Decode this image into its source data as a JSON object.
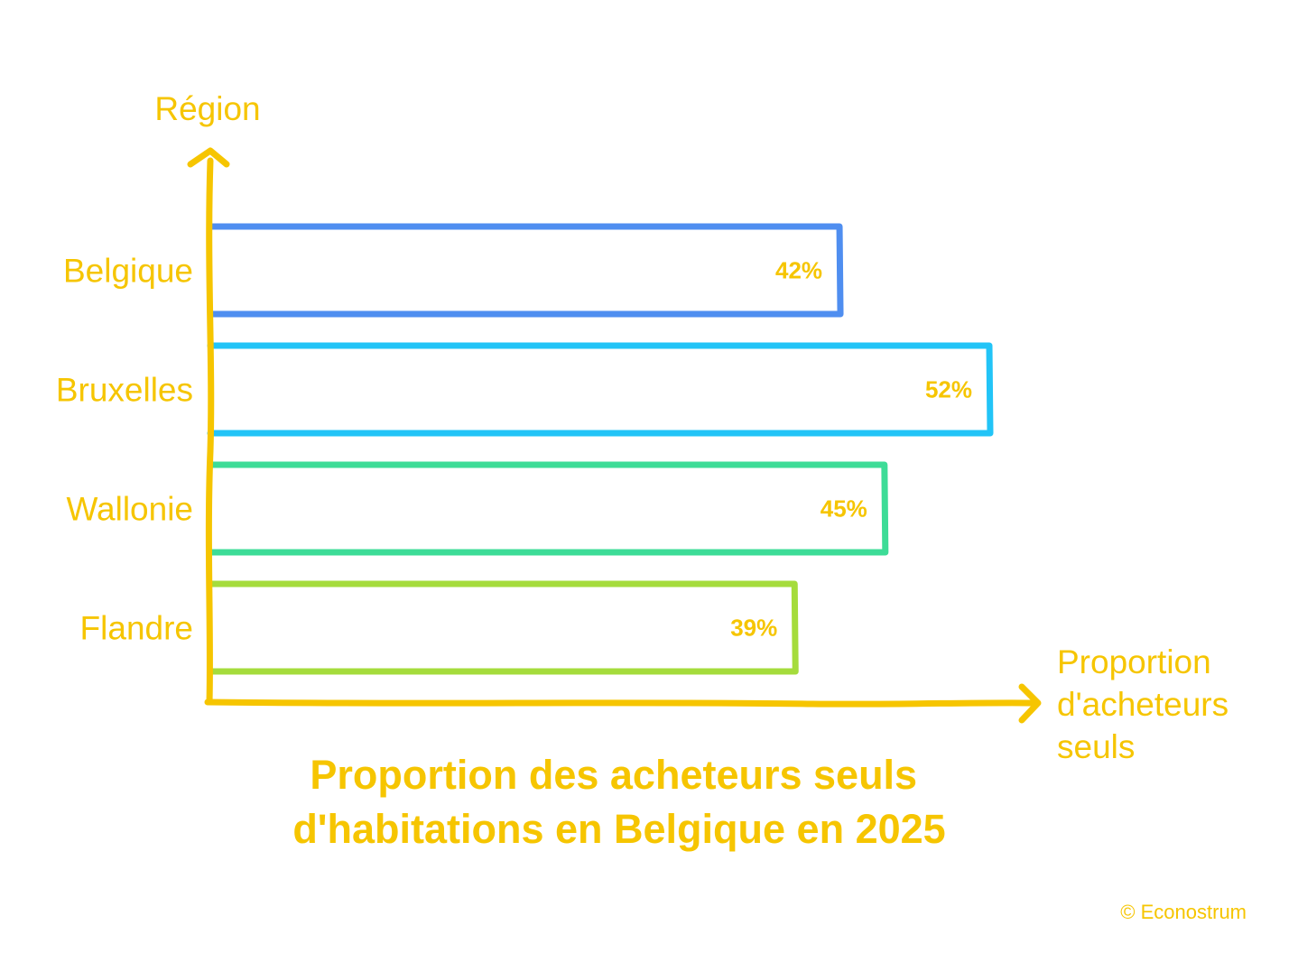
{
  "chart_data": {
    "type": "bar",
    "orientation": "horizontal",
    "title_lines": [
      "Proportion des acheteurs seuls",
      "d'habitations en Belgique en 2025"
    ],
    "ylabel": "Région",
    "xlabel_lines": [
      "Proportion",
      "d'acheteurs",
      "seuls"
    ],
    "categories": [
      "Belgique",
      "Bruxelles",
      "Wallonie",
      "Flandre"
    ],
    "values": [
      42,
      52,
      45,
      39
    ],
    "value_labels": [
      "42%",
      "52%",
      "45%",
      "39%"
    ],
    "bar_colors": [
      "#4f8ef0",
      "#22c4f7",
      "#3ddc97",
      "#a5dc3c"
    ],
    "axis_color": "#f6c500",
    "text_color": "#f6c500",
    "xlim": [
      0,
      52
    ],
    "grid": false,
    "legend": "none"
  },
  "credit": "© Econostrum"
}
